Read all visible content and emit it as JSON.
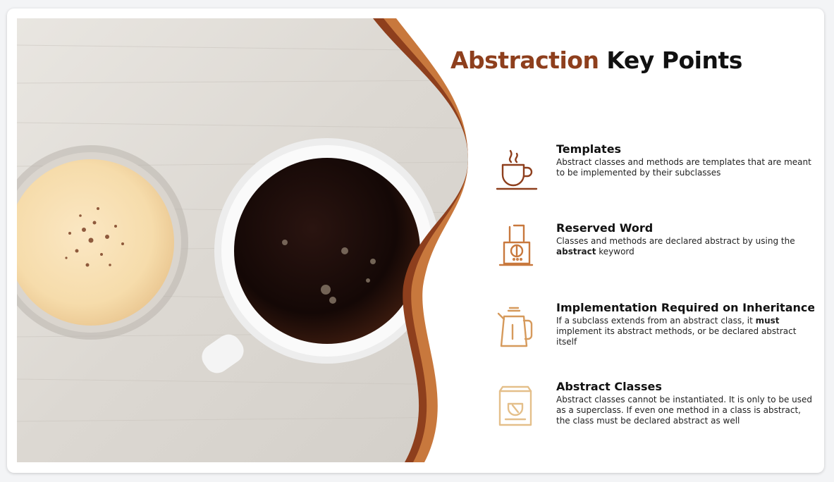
{
  "slide": {
    "title_accent": "Abstraction",
    "title_rest": " Key Points"
  },
  "colors": {
    "accent_dark": "#8e3f1d",
    "accent_mid": "#a8522a",
    "accent_light": "#c8783d",
    "icon_gold": "#e4bf8a"
  },
  "points": [
    {
      "heading": "Templates",
      "body": "Abstract classes and methods are templates that are meant to be implemented by their subclasses",
      "icon": "coffee-cup-icon"
    },
    {
      "heading": "Reserved Word",
      "body_before": "Classes and methods are declared abstract by using the ",
      "body_bold": "abstract",
      "body_after": " keyword",
      "icon": "coffee-grinder-icon"
    },
    {
      "heading": "Implementation Required on Inheritance",
      "body_before": "If a subclass extends from an abstract class, it ",
      "body_bold": "must",
      "body_after": " implement its abstract methods, or be declared abstract itself",
      "icon": "coffee-kettle-icon"
    },
    {
      "heading": "Abstract Classes",
      "body": "Abstract classes cannot be instantiated. It is only to be used as a superclass. If even one method in a class is abstract, the class must be declared abstract as well",
      "icon": "coffee-bag-icon"
    }
  ]
}
